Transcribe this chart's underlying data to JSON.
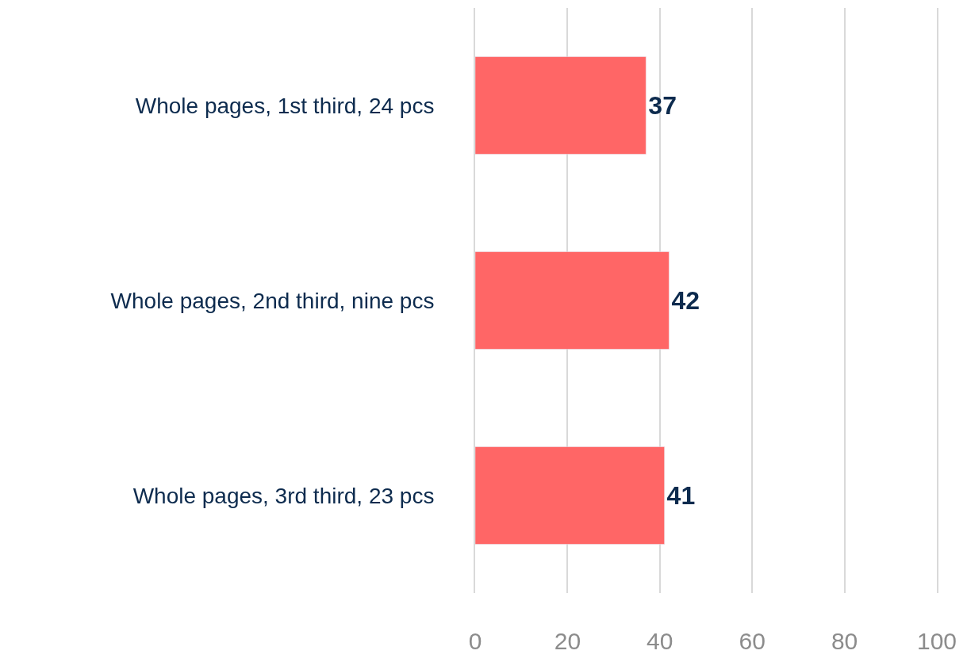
{
  "chart_data": {
    "type": "bar",
    "orientation": "horizontal",
    "categories": [
      "Whole pages, 1st third, 24 pcs",
      "Whole pages, 2nd third, nine pcs",
      "Whole pages, 3rd third, 23 pcs"
    ],
    "values": [
      37,
      42,
      41
    ],
    "color": "#ff6666",
    "xlim": [
      0,
      100
    ],
    "xticks": [
      0,
      20,
      40,
      60,
      80,
      100
    ],
    "grid": "x",
    "data_labels": true
  }
}
